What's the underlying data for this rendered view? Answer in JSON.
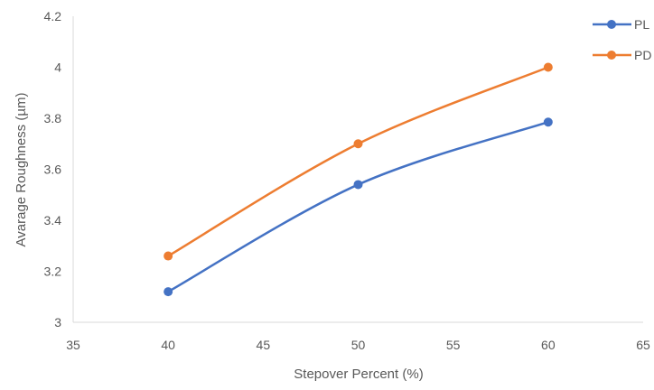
{
  "chart_data": {
    "type": "line",
    "title": "",
    "xlabel": "Stepover Percent (%)",
    "ylabel": "Avarage Roughness (µm)",
    "xlim": [
      35,
      65
    ],
    "ylim": [
      3,
      4.2
    ],
    "x_ticks": [
      35,
      40,
      45,
      50,
      55,
      60,
      65
    ],
    "y_ticks": [
      3,
      3.2,
      3.4,
      3.6,
      3.8,
      4,
      4.2
    ],
    "x_tick_labels": [
      "35",
      "40",
      "45",
      "50",
      "55",
      "60",
      "65"
    ],
    "y_tick_labels": [
      "3",
      "3.2",
      "3.4",
      "3.6",
      "3.8",
      "4",
      "4.2"
    ],
    "grid": false,
    "smooth": true,
    "legend_position": "top-right",
    "series": [
      {
        "name": "PL",
        "color": "#4472C4",
        "x": [
          40,
          50,
          60
        ],
        "y": [
          3.12,
          3.54,
          3.785
        ]
      },
      {
        "name": "PD",
        "color": "#ED7D31",
        "x": [
          40,
          50,
          60
        ],
        "y": [
          3.26,
          3.7,
          4.0
        ]
      }
    ]
  }
}
